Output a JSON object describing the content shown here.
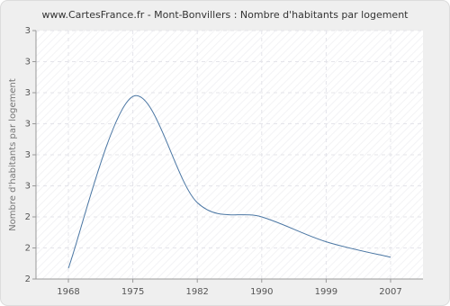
{
  "chart_data": {
    "type": "line",
    "title": "www.CartesFrance.fr - Mont-Bonvillers : Nombre d'habitants par logement",
    "y_label": "Nombre d'habitants par logement",
    "categories": [
      "1968",
      "1975",
      "1982",
      "1990",
      "1999",
      "2007"
    ],
    "values": [
      2.235,
      2.788,
      2.446,
      2.4,
      2.32,
      2.27
    ],
    "color": "#4a76a3",
    "ylim": [
      2.2,
      3.0
    ],
    "yticks": [
      {
        "value": 2.2,
        "label": "2"
      },
      {
        "value": 2.3,
        "label": "2"
      },
      {
        "value": 2.4,
        "label": "2"
      },
      {
        "value": 2.5,
        "label": "3"
      },
      {
        "value": 2.6,
        "label": "3"
      },
      {
        "value": 2.7,
        "label": "3"
      },
      {
        "value": 2.8,
        "label": "3"
      },
      {
        "value": 2.9,
        "label": "3"
      },
      {
        "value": 3.0,
        "label": "3"
      }
    ],
    "grid": true
  }
}
